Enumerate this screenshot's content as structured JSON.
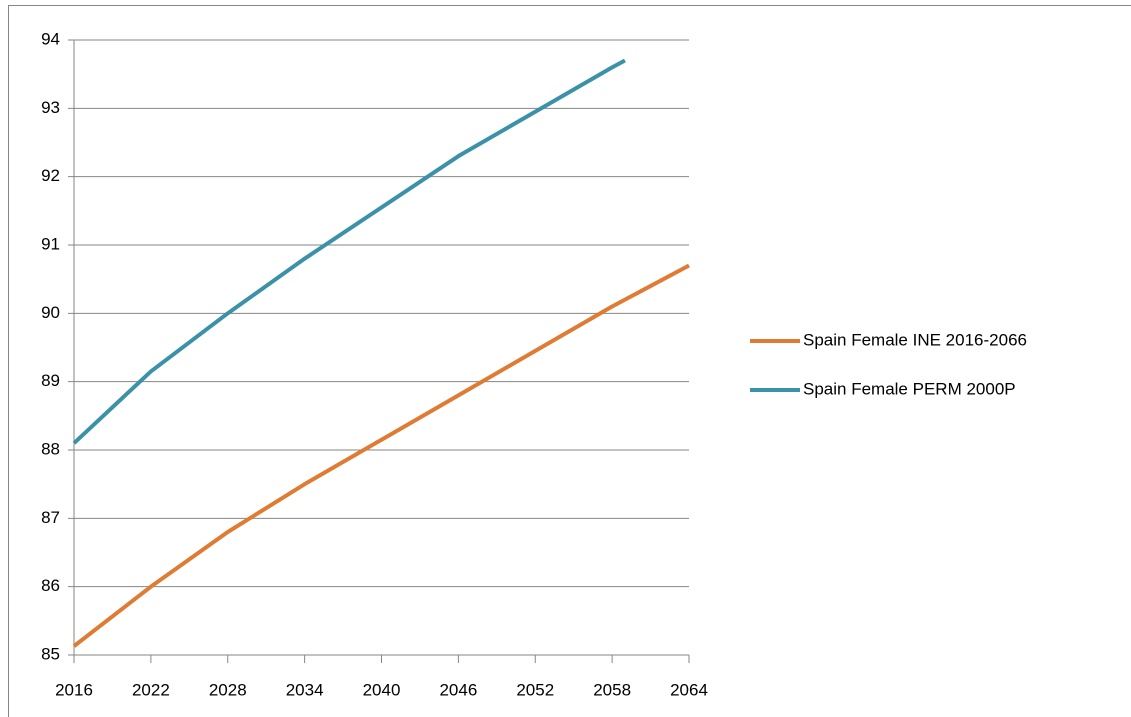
{
  "chart_data": {
    "type": "line",
    "xlim": [
      2016,
      2064
    ],
    "xticks": [
      2016,
      2022,
      2028,
      2034,
      2040,
      2046,
      2052,
      2058,
      2064
    ],
    "ylim": [
      85,
      94
    ],
    "yticks": [
      85,
      86,
      87,
      88,
      89,
      90,
      91,
      92,
      93,
      94
    ],
    "grid": true,
    "legend": "right",
    "series": [
      {
        "name": "Spain Female INE 2016-2066",
        "color": "#e07b33",
        "x": [
          2016,
          2022,
          2028,
          2034,
          2040,
          2046,
          2052,
          2058,
          2064
        ],
        "values": [
          85.13,
          86.0,
          86.8,
          87.5,
          88.15,
          88.8,
          89.45,
          90.1,
          90.7
        ]
      },
      {
        "name": "Spain Female PERM 2000P",
        "color": "#3a91a8",
        "x": [
          2016,
          2022,
          2028,
          2034,
          2040,
          2046,
          2052,
          2058,
          2059
        ],
        "values": [
          88.1,
          89.15,
          90.0,
          90.8,
          91.55,
          92.3,
          92.95,
          93.6,
          93.7
        ]
      }
    ]
  }
}
